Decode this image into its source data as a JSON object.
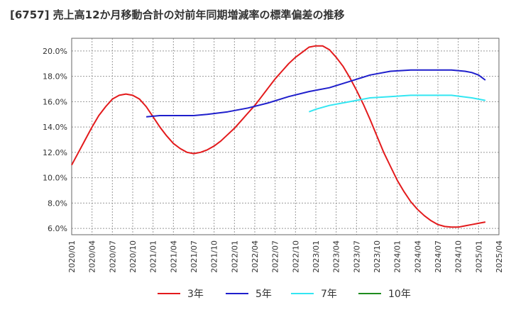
{
  "title": "[6757]  売上高12か月移動合計の対前年同期増減率の標準偏差の推移",
  "chart_data": {
    "type": "line",
    "title": "[6757]  売上高12か月移動合計の対前年同期増減率の標準偏差の推移",
    "xlabel": "",
    "ylabel": "",
    "ylim": [
      5.5,
      21.0
    ],
    "y_ticks": [
      "6.0%",
      "8.0%",
      "10.0%",
      "12.0%",
      "14.0%",
      "16.0%",
      "18.0%",
      "20.0%"
    ],
    "x_ticks": [
      "2020/01",
      "2020/04",
      "2020/07",
      "2020/10",
      "2021/01",
      "2021/04",
      "2021/07",
      "2021/10",
      "2022/01",
      "2022/04",
      "2022/07",
      "2022/10",
      "2023/01",
      "2023/04",
      "2023/07",
      "2023/10",
      "2024/01",
      "2024/04",
      "2024/07",
      "2024/10",
      "2025/01",
      "2025/04"
    ],
    "grid": true,
    "legend_position": "bottom",
    "series": [
      {
        "name": "3年",
        "color": "#e31a1c",
        "points": [
          [
            "2020/01",
            11.0
          ],
          [
            "2020/02",
            12.0
          ],
          [
            "2020/03",
            13.0
          ],
          [
            "2020/04",
            14.0
          ],
          [
            "2020/05",
            14.9
          ],
          [
            "2020/06",
            15.6
          ],
          [
            "2020/07",
            16.2
          ],
          [
            "2020/08",
            16.5
          ],
          [
            "2020/09",
            16.6
          ],
          [
            "2020/10",
            16.5
          ],
          [
            "2020/11",
            16.2
          ],
          [
            "2020/12",
            15.6
          ],
          [
            "2021/01",
            14.8
          ],
          [
            "2021/02",
            14.0
          ],
          [
            "2021/03",
            13.3
          ],
          [
            "2021/04",
            12.7
          ],
          [
            "2021/05",
            12.3
          ],
          [
            "2021/06",
            12.0
          ],
          [
            "2021/07",
            11.9
          ],
          [
            "2021/08",
            12.0
          ],
          [
            "2021/09",
            12.2
          ],
          [
            "2021/10",
            12.5
          ],
          [
            "2021/11",
            12.9
          ],
          [
            "2021/12",
            13.4
          ],
          [
            "2022/01",
            13.9
          ],
          [
            "2022/02",
            14.5
          ],
          [
            "2022/03",
            15.1
          ],
          [
            "2022/04",
            15.7
          ],
          [
            "2022/05",
            16.4
          ],
          [
            "2022/06",
            17.1
          ],
          [
            "2022/07",
            17.8
          ],
          [
            "2022/08",
            18.4
          ],
          [
            "2022/09",
            19.0
          ],
          [
            "2022/10",
            19.5
          ],
          [
            "2022/11",
            19.9
          ],
          [
            "2022/12",
            20.3
          ],
          [
            "2023/01",
            20.4
          ],
          [
            "2023/02",
            20.4
          ],
          [
            "2023/03",
            20.1
          ],
          [
            "2023/04",
            19.5
          ],
          [
            "2023/05",
            18.8
          ],
          [
            "2023/06",
            17.9
          ],
          [
            "2023/07",
            16.9
          ],
          [
            "2023/08",
            15.8
          ],
          [
            "2023/09",
            14.6
          ],
          [
            "2023/10",
            13.3
          ],
          [
            "2023/11",
            12.0
          ],
          [
            "2023/12",
            10.9
          ],
          [
            "2024/01",
            9.8
          ],
          [
            "2024/02",
            8.9
          ],
          [
            "2024/03",
            8.1
          ],
          [
            "2024/04",
            7.5
          ],
          [
            "2024/05",
            7.0
          ],
          [
            "2024/06",
            6.6
          ],
          [
            "2024/07",
            6.3
          ],
          [
            "2024/08",
            6.15
          ],
          [
            "2024/09",
            6.1
          ],
          [
            "2024/10",
            6.1
          ],
          [
            "2024/11",
            6.2
          ],
          [
            "2024/12",
            6.3
          ],
          [
            "2025/01",
            6.4
          ],
          [
            "2025/02",
            6.5
          ]
        ]
      },
      {
        "name": "5年",
        "color": "#1f1fcc",
        "points": [
          [
            "2020/12",
            14.8
          ],
          [
            "2021/01",
            14.85
          ],
          [
            "2021/02",
            14.9
          ],
          [
            "2021/04",
            14.9
          ],
          [
            "2021/07",
            14.9
          ],
          [
            "2021/09",
            15.0
          ],
          [
            "2021/12",
            15.2
          ],
          [
            "2022/03",
            15.5
          ],
          [
            "2022/06",
            15.9
          ],
          [
            "2022/09",
            16.4
          ],
          [
            "2022/12",
            16.8
          ],
          [
            "2023/03",
            17.1
          ],
          [
            "2023/06",
            17.6
          ],
          [
            "2023/09",
            18.1
          ],
          [
            "2023/12",
            18.4
          ],
          [
            "2024/03",
            18.5
          ],
          [
            "2024/06",
            18.5
          ],
          [
            "2024/09",
            18.5
          ],
          [
            "2024/11",
            18.4
          ],
          [
            "2024/12",
            18.3
          ],
          [
            "2025/01",
            18.1
          ],
          [
            "2025/02",
            17.7
          ]
        ]
      },
      {
        "name": "7年",
        "color": "#33e6f2",
        "points": [
          [
            "2022/12",
            15.2
          ],
          [
            "2023/01",
            15.4
          ],
          [
            "2023/03",
            15.7
          ],
          [
            "2023/06",
            16.0
          ],
          [
            "2023/09",
            16.3
          ],
          [
            "2023/12",
            16.4
          ],
          [
            "2024/03",
            16.5
          ],
          [
            "2024/06",
            16.5
          ],
          [
            "2024/09",
            16.5
          ],
          [
            "2024/12",
            16.3
          ],
          [
            "2025/02",
            16.1
          ]
        ]
      },
      {
        "name": "10年",
        "color": "#1e8c1e",
        "points": []
      }
    ]
  }
}
